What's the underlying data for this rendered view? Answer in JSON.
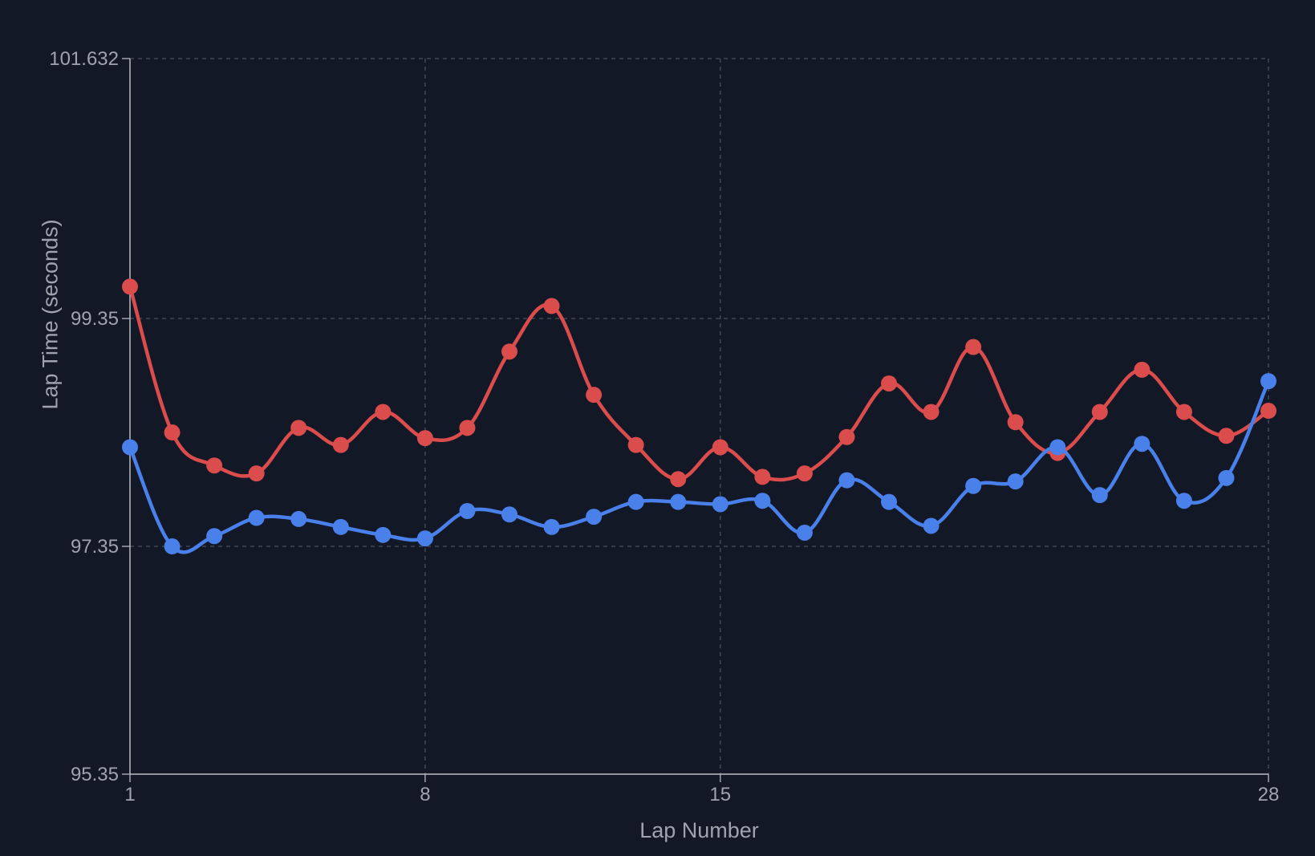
{
  "chart_data": {
    "type": "line",
    "title": "",
    "xlabel": "Lap Number",
    "ylabel": "Lap Time (seconds)",
    "xlim": [
      1,
      28
    ],
    "ylim": [
      95.35,
      101.632
    ],
    "x_ticks": [
      "1",
      "8",
      "15",
      "28"
    ],
    "y_ticks": [
      "95.35",
      "97.35",
      "99.35",
      "101.632"
    ],
    "grid": true,
    "legend": "none",
    "x": [
      1,
      2,
      3,
      4,
      5,
      6,
      7,
      8,
      9,
      10,
      11,
      12,
      13,
      14,
      15,
      16,
      17,
      18,
      19,
      20,
      21,
      22,
      23,
      24,
      25,
      26,
      27,
      28
    ],
    "series": [
      {
        "color": "#db4c4c",
        "values": [
          99.63,
          98.35,
          98.06,
          97.99,
          98.39,
          98.24,
          98.53,
          98.3,
          98.39,
          99.06,
          99.46,
          98.68,
          98.24,
          97.94,
          98.22,
          97.96,
          97.99,
          98.31,
          98.78,
          98.53,
          99.1,
          98.44,
          98.17,
          98.53,
          98.9,
          98.53,
          98.32,
          98.54
        ]
      },
      {
        "color": "#4a80ea",
        "values": [
          98.22,
          97.35,
          97.44,
          97.6,
          97.59,
          97.52,
          97.45,
          97.42,
          97.66,
          97.63,
          97.52,
          97.61,
          97.74,
          97.74,
          97.72,
          97.75,
          97.47,
          97.93,
          97.74,
          97.53,
          97.88,
          97.92,
          98.22,
          97.8,
          98.25,
          97.75,
          97.95,
          98.8
        ]
      }
    ]
  }
}
